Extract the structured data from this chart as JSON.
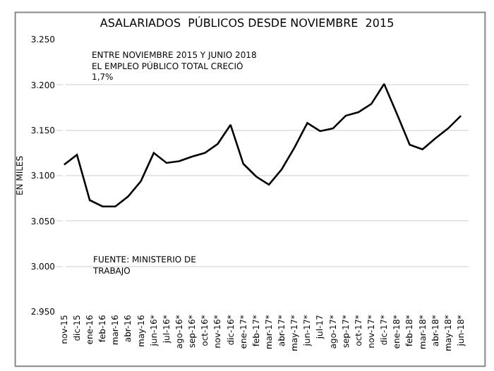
{
  "chart_data": {
    "type": "line",
    "title": "ASALARIADOS  PÚBLICOS DESDE NOVIEMBRE  2015",
    "ylabel": "EN MILES",
    "annotations": [
      "ENTRE NOVIEMBRE 2015 Y JUNIO 2018\nEL EMPLEO PÚBLICO TOTAL CRECIÓ\n1,7%",
      "FUENTE: MINISTERIO DE\nTRABAJO"
    ],
    "categories": [
      "nov-15",
      "dic-15",
      "ene-16",
      "feb-16",
      "mar-16",
      "abr-16",
      "may-16",
      "jun-16*",
      "jul-16*",
      "ago-16*",
      "sep-16*",
      "oct-16*",
      "nov-16*",
      "dic-16*",
      "ene-17*",
      "feb-17*",
      "mar-17*",
      "abr-17*",
      "may-17*",
      "jun-17*",
      "jul-17",
      "ago-17*",
      "sep-17*",
      "oct-17*",
      "nov-17*",
      "dic-17*",
      "ene-18*",
      "feb-18*",
      "mar-18*",
      "abr-18*",
      "may-18*",
      "jun-18*"
    ],
    "series": [
      {
        "color": "#000000",
        "values": [
          3.112,
          3.123,
          3.073,
          3.066,
          3.066,
          3.077,
          3.094,
          3.125,
          3.114,
          3.116,
          3.121,
          3.125,
          3.135,
          3.156,
          3.113,
          3.099,
          3.09,
          3.107,
          3.131,
          3.158,
          3.149,
          3.152,
          3.166,
          3.17,
          3.179,
          3.201,
          3.168,
          3.134,
          3.129,
          3.141,
          3.152,
          3.166
        ]
      }
    ],
    "ylim": [
      2.95,
      3.25
    ],
    "yticks": [
      {
        "value": 2.95,
        "label": "2.950"
      },
      {
        "value": 3.0,
        "label": "3.000"
      },
      {
        "value": 3.05,
        "label": "3.050"
      },
      {
        "value": 3.1,
        "label": "3.100"
      },
      {
        "value": 3.15,
        "label": "3.150"
      },
      {
        "value": 3.2,
        "label": "3.200"
      },
      {
        "value": 3.25,
        "label": "3.250"
      }
    ],
    "grid": "y",
    "legend": false,
    "marker": "none",
    "line_style": "solid"
  }
}
